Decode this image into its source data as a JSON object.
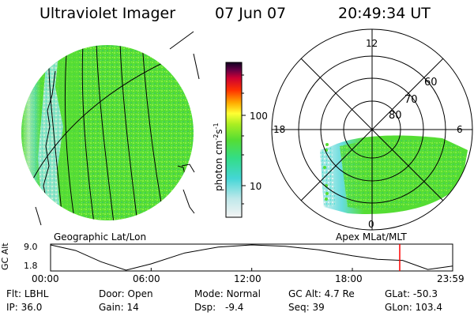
{
  "header": {
    "instrument": "Ultraviolet Imager",
    "date": "07 Jun 07",
    "time": "20:49:34 UT"
  },
  "map_labels": {
    "geographic": "Geographic Lat/Lon",
    "apex": "Apex MLat/MLT"
  },
  "colorbar": {
    "label_main": "photon cm",
    "label_sup1": "-2",
    "label_mid": "s",
    "label_sup2": "-1",
    "ticks": [
      "100",
      "10"
    ]
  },
  "polar": {
    "mlt_labels": {
      "top": "12",
      "left": "18",
      "right": "6",
      "bottom": "0"
    },
    "lat_labels": [
      "60",
      "70",
      "80"
    ]
  },
  "altitude_plot": {
    "ylabel": "GC Alt",
    "ytick_top": "9.0",
    "ytick_bottom": "1.8",
    "xticks": [
      "00:00",
      "06:00",
      "12:00",
      "18:00",
      "23:59"
    ]
  },
  "chart_data": {
    "type": "line",
    "title": "",
    "xlabel": "",
    "ylabel": "GC Alt",
    "x_ticks": [
      "00:00",
      "06:00",
      "12:00",
      "18:00",
      "23:59"
    ],
    "ylim": [
      1.8,
      9.0
    ],
    "series": [
      {
        "x": [
          "00:00",
          "01:30",
          "03:00",
          "04:30",
          "06:00",
          "08:00",
          "10:00",
          "12:00",
          "14:00",
          "16:00",
          "18:00",
          "19:30",
          "21:00",
          "22:30",
          "23:59"
        ],
        "values": [
          9.0,
          7.4,
          4.2,
          1.8,
          3.6,
          6.7,
          8.4,
          9.0,
          8.6,
          7.6,
          5.9,
          4.9,
          4.6,
          2.0,
          3.0
        ]
      }
    ],
    "current_time_marker": "20:49:34",
    "marker_color": "#ff0000"
  },
  "footer": {
    "col1": [
      {
        "label": "Flt:",
        "value": "LBHL"
      },
      {
        "label": "IP:",
        "value": "36.0"
      }
    ],
    "col2": [
      {
        "label": "Door:",
        "value": "Open"
      },
      {
        "label": "Gain:",
        "value": "14"
      }
    ],
    "col3": [
      {
        "label": "Mode:",
        "value": "Normal"
      },
      {
        "label": "Dsp:",
        "value": "-9.4"
      }
    ],
    "col4": [
      {
        "label": "GC Alt:",
        "value": "4.7 Re"
      },
      {
        "label": "Seq:",
        "value": "39"
      }
    ],
    "col5": [
      {
        "label": "GLat:",
        "value": "-50.3"
      },
      {
        "label": "GLon:",
        "value": "103.4"
      }
    ]
  },
  "colors": {
    "green": "#55dd33",
    "lightgreen": "#99ee44",
    "cyan": "#66dddd",
    "pale": "#ccecee",
    "marker": "#ff0000"
  }
}
